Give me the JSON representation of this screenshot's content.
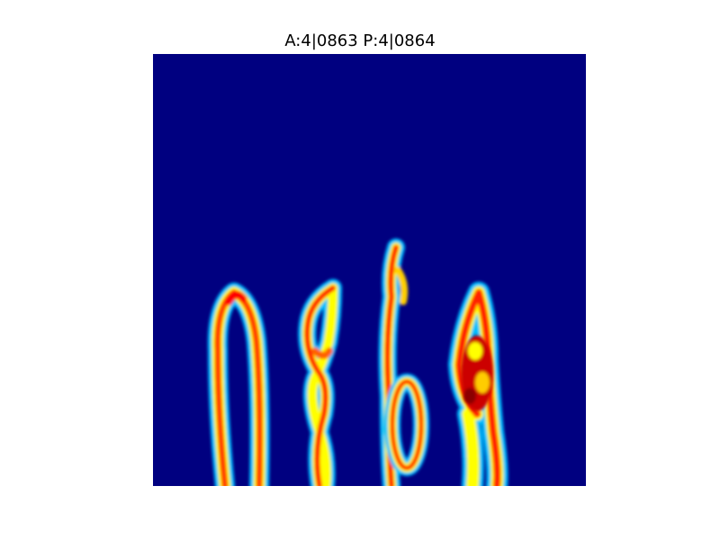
{
  "figure": {
    "title": "A:4|0863 P:4|0864"
  },
  "image": {
    "colormap": "jet",
    "background_color": "#000080",
    "content": "heatmap of handwritten digits 0 8 6 4"
  }
}
